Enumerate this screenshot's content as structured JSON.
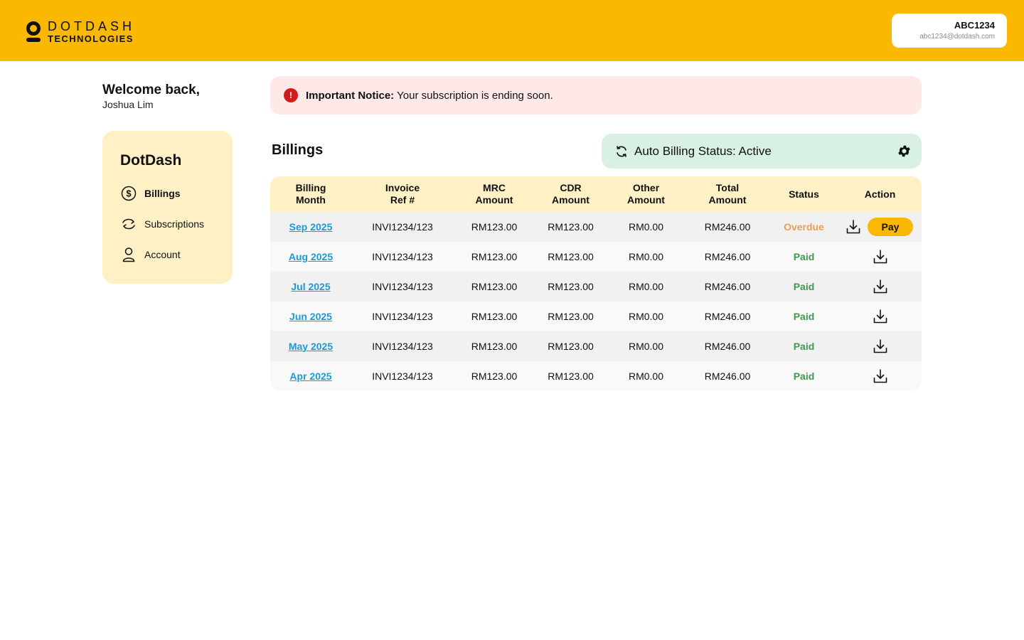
{
  "header": {
    "logo_line1": "DOTDASH",
    "logo_line2": "TECHNOLOGIES",
    "account_id": "ABC1234",
    "account_email": "abc1234@dotdash.com"
  },
  "welcome": {
    "greeting": "Welcome back,",
    "name": "Joshua Lim"
  },
  "sidebar": {
    "brand": "DotDash",
    "items": [
      {
        "label": "Billings",
        "icon": "dollar-circle-icon",
        "active": true
      },
      {
        "label": "Subscriptions",
        "icon": "refresh-icon",
        "active": false
      },
      {
        "label": "Account",
        "icon": "user-icon",
        "active": false
      }
    ]
  },
  "notice": {
    "title": "Important Notice:",
    "message": "Your subscription is ending soon.",
    "icon": "alert-icon",
    "color": "#d21b1b"
  },
  "billings": {
    "title": "Billings",
    "auto_billing": "Auto Billing Status: Active"
  },
  "table": {
    "headers": [
      "Billing\nMonth",
      "Invoice\nRef #",
      "MRC\nAmount",
      "CDR\nAmount",
      "Other\nAmount",
      "Total\nAmount",
      "Status",
      "Action"
    ],
    "rows": [
      {
        "month": "Sep 2025",
        "ref": "INVI1234/123",
        "mrc": "RM123.00",
        "cdr": "RM123.00",
        "other": "RM0.00",
        "total": "RM246.00",
        "status": "Overdue"
      },
      {
        "month": "Aug 2025",
        "ref": "INVI1234/123",
        "mrc": "RM123.00",
        "cdr": "RM123.00",
        "other": "RM0.00",
        "total": "RM246.00",
        "status": "Paid"
      },
      {
        "month": "Jul 2025",
        "ref": "INVI1234/123",
        "mrc": "RM123.00",
        "cdr": "RM123.00",
        "other": "RM0.00",
        "total": "RM246.00",
        "status": "Paid"
      },
      {
        "month": "Jun 2025",
        "ref": "INVI1234/123",
        "mrc": "RM123.00",
        "cdr": "RM123.00",
        "other": "RM0.00",
        "total": "RM246.00",
        "status": "Paid"
      },
      {
        "month": "May 2025",
        "ref": "INVI1234/123",
        "mrc": "RM123.00",
        "cdr": "RM123.00",
        "other": "RM0.00",
        "total": "RM246.00",
        "status": "Paid"
      },
      {
        "month": "Apr 2025",
        "ref": "INVI1234/123",
        "mrc": "RM123.00",
        "cdr": "RM123.00",
        "other": "RM0.00",
        "total": "RM246.00",
        "status": "Paid"
      }
    ],
    "pay_label": "Pay"
  },
  "colors": {
    "brand": "#fbb800",
    "sidebar_bg": "#fff0c6",
    "link": "#1a9ad6",
    "overdue": "#ea9e57",
    "paid": "#3d9a4f",
    "auto_bg": "#d9f1e2",
    "notice_bg": "#ffe8e8"
  }
}
